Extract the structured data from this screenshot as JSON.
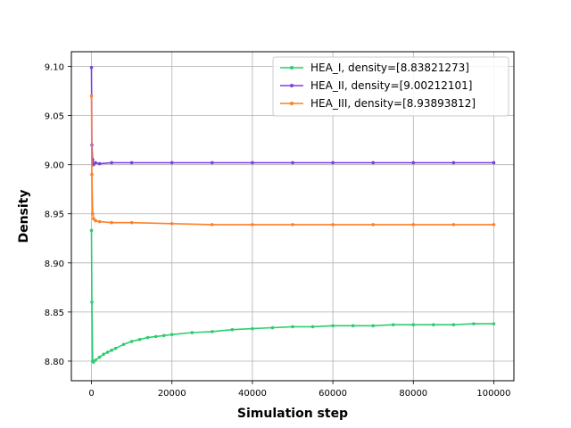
{
  "chart_data": {
    "type": "line",
    "title": "",
    "xlabel": "Simulation step",
    "ylabel": "Density",
    "xlim": [
      -5000,
      105000
    ],
    "ylim": [
      8.78,
      9.115
    ],
    "xticks": [
      0,
      20000,
      40000,
      60000,
      80000,
      100000
    ],
    "xtick_labels": [
      "0",
      "20000",
      "40000",
      "60000",
      "80000",
      "100000"
    ],
    "yticks": [
      8.8,
      8.85,
      8.9,
      8.95,
      9.0,
      9.05,
      9.1
    ],
    "ytick_labels": [
      "8.80",
      "8.85",
      "8.90",
      "8.95",
      "9.00",
      "9.05",
      "9.10"
    ],
    "grid": true,
    "legend_position": "top-right",
    "series": [
      {
        "name": "HEA_I, density=[8.83821273]",
        "color": "#2ecc71",
        "x": [
          0,
          100,
          300,
          500,
          1000,
          2000,
          3000,
          4000,
          5000,
          6000,
          8000,
          10000,
          12000,
          14000,
          16000,
          18000,
          20000,
          25000,
          30000,
          35000,
          40000,
          45000,
          50000,
          55000,
          60000,
          65000,
          70000,
          75000,
          80000,
          85000,
          90000,
          95000,
          100000
        ],
        "values": [
          8.933,
          8.86,
          8.8,
          8.799,
          8.801,
          8.804,
          8.807,
          8.809,
          8.811,
          8.813,
          8.817,
          8.82,
          8.822,
          8.824,
          8.825,
          8.826,
          8.827,
          8.829,
          8.83,
          8.832,
          8.833,
          8.834,
          8.835,
          8.835,
          8.836,
          8.836,
          8.836,
          8.837,
          8.837,
          8.837,
          8.837,
          8.838,
          8.838
        ]
      },
      {
        "name": "HEA_II, density=[9.00212101]",
        "color": "#7b3fe4",
        "x": [
          0,
          100,
          300,
          500,
          1000,
          2000,
          5000,
          10000,
          20000,
          30000,
          40000,
          50000,
          60000,
          70000,
          80000,
          90000,
          100000
        ],
        "values": [
          9.099,
          9.02,
          9.005,
          9.0,
          9.002,
          9.001,
          9.002,
          9.002,
          9.002,
          9.002,
          9.002,
          9.002,
          9.002,
          9.002,
          9.002,
          9.002,
          9.002
        ]
      },
      {
        "name": "HEA_III, density=[8.93893812]",
        "color": "#ff7f27",
        "x": [
          0,
          100,
          300,
          500,
          1000,
          2000,
          5000,
          10000,
          20000,
          30000,
          40000,
          50000,
          60000,
          70000,
          80000,
          90000,
          100000
        ],
        "values": [
          9.07,
          8.99,
          8.95,
          8.945,
          8.943,
          8.942,
          8.941,
          8.941,
          8.94,
          8.939,
          8.939,
          8.939,
          8.939,
          8.939,
          8.939,
          8.939,
          8.939
        ]
      }
    ]
  }
}
